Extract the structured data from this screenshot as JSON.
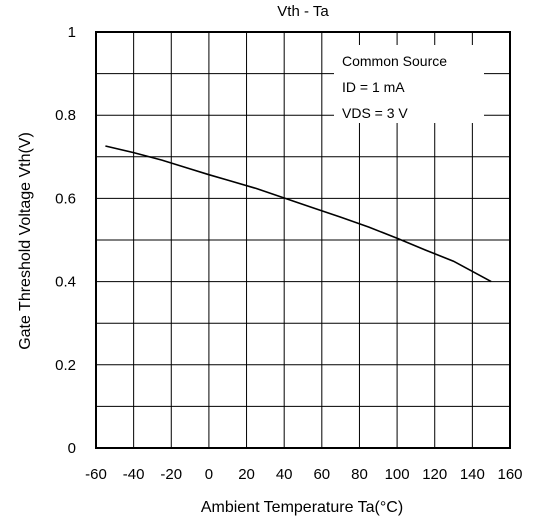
{
  "chart_data": {
    "type": "line",
    "title": "Vth - Ta",
    "xlabel": "Ambient Temperature Ta(°C)",
    "ylabel": "Gate Threshold Voltage Vth(V)",
    "xlim": [
      -60,
      160
    ],
    "ylim": [
      0,
      1
    ],
    "x_ticks": [
      -60,
      -40,
      -20,
      0,
      20,
      40,
      60,
      80,
      100,
      120,
      140,
      160
    ],
    "x_tick_labels": [
      "-60",
      "-40",
      "-20",
      "0",
      "20",
      "40",
      "60",
      "80",
      "100",
      "120",
      "140",
      "160"
    ],
    "y_ticks": [
      0,
      0.2,
      0.4,
      0.6,
      0.8,
      1
    ],
    "y_tick_labels": [
      "0",
      "0.2",
      "0.4",
      "0.6",
      "0.8",
      "1"
    ],
    "x_grid_step": 20,
    "y_grid_step": 0.1,
    "grid": true,
    "annotations": [
      "Common Source",
      "ID = 1 mA",
      "VDS = 3 V"
    ],
    "annotation_placement": "top-right",
    "series": [
      {
        "x": [
          -55,
          -40,
          -25,
          -10,
          0,
          10,
          25,
          40,
          55,
          70,
          85,
          100,
          115,
          130,
          150
        ],
        "y": [
          0.726,
          0.71,
          0.692,
          0.671,
          0.657,
          0.644,
          0.624,
          0.601,
          0.578,
          0.555,
          0.531,
          0.504,
          0.476,
          0.449,
          0.4
        ],
        "color": "#000000"
      }
    ]
  }
}
